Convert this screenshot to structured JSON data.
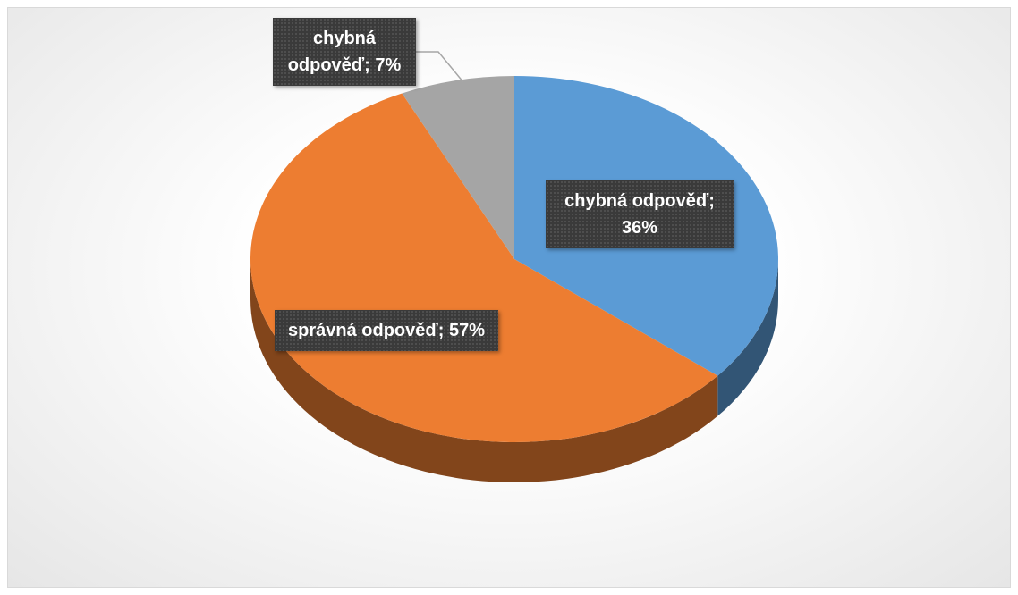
{
  "chart_data": {
    "type": "pie",
    "values": [
      36,
      57,
      7
    ],
    "value_labels": [
      "chybná odpověď; 36%",
      "správná odpověď; 57%",
      "chybná odpověď; 7%"
    ],
    "colors": [
      "#5b9bd5",
      "#ed7d31",
      "#a5a5a5"
    ]
  }
}
